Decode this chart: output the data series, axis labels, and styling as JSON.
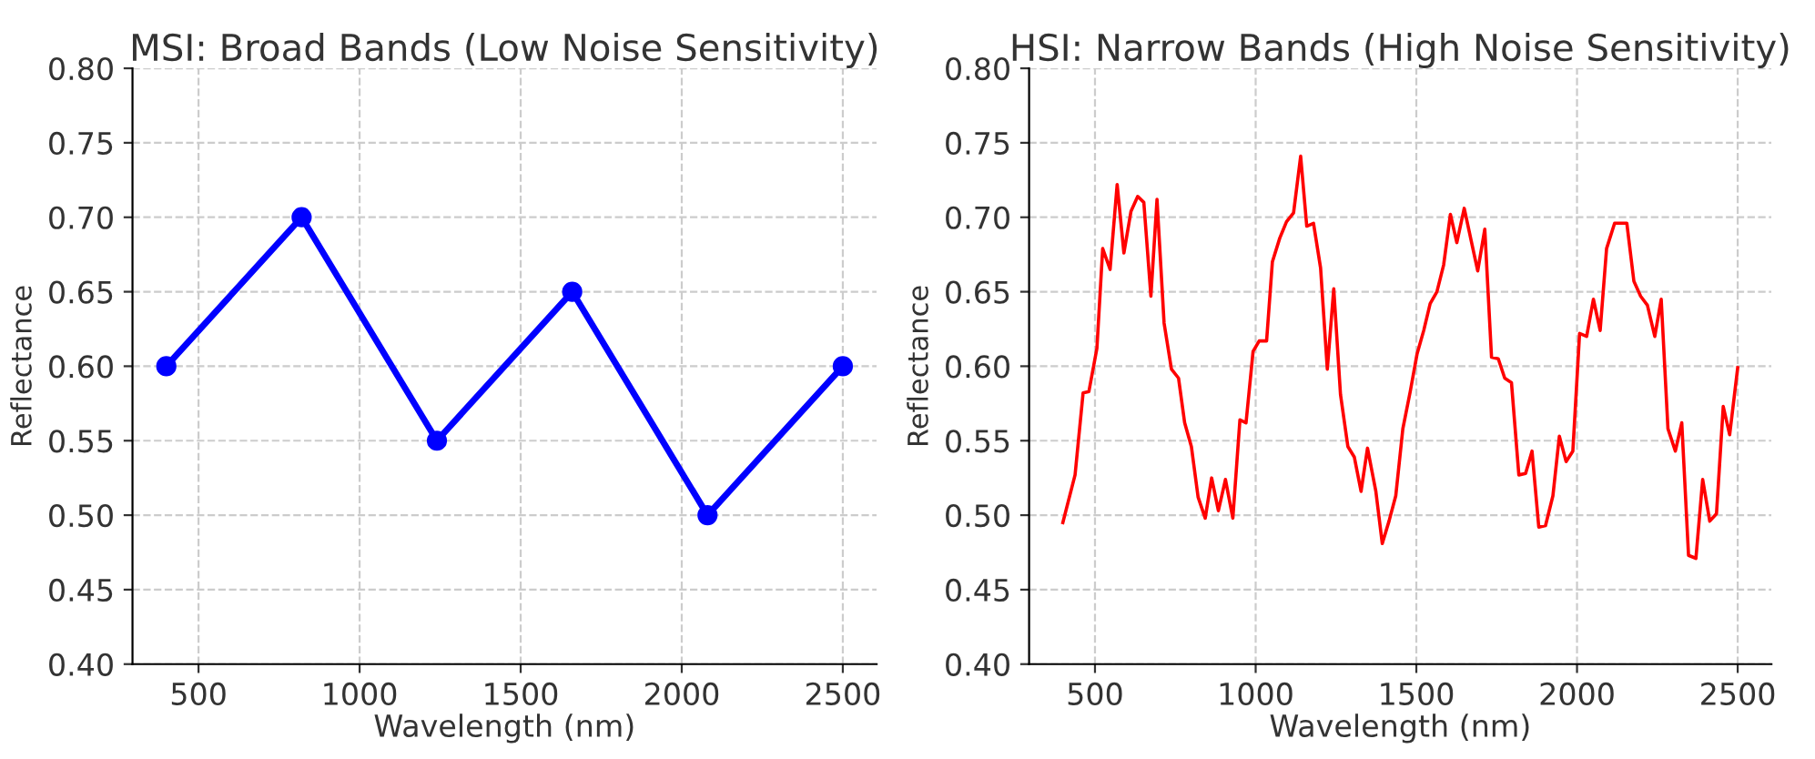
{
  "chart_data": [
    {
      "type": "line",
      "title": "MSI: Broad Bands (Low Noise Sensitivity)",
      "xlabel": "Wavelength (nm)",
      "ylabel": "Reflectance",
      "series": [
        {
          "color": "#0000ff",
          "x": [
            400,
            820,
            1240,
            1660,
            2080,
            2500
          ],
          "values": [
            0.6,
            0.7,
            0.55,
            0.65,
            0.5,
            0.6
          ]
        }
      ],
      "xlim": [
        295,
        2605
      ],
      "xticks": [
        500,
        1000,
        1500,
        2000,
        2500
      ],
      "ylim": [
        0.4,
        0.8
      ],
      "yticks": [
        {
          "value": 0.4,
          "label": "0.40"
        },
        {
          "value": 0.45,
          "label": "0.45"
        },
        {
          "value": 0.5,
          "label": "0.50"
        },
        {
          "value": 0.55,
          "label": "0.55"
        },
        {
          "value": 0.6,
          "label": "0.60"
        },
        {
          "value": 0.65,
          "label": "0.65"
        },
        {
          "value": 0.7,
          "label": "0.70"
        },
        {
          "value": 0.75,
          "label": "0.75"
        },
        {
          "value": 0.8,
          "label": "0.80"
        }
      ],
      "grid": true,
      "marker": "circle",
      "line_style": "solid"
    },
    {
      "type": "line",
      "title": "HSI: Narrow Bands (High Noise Sensitivity)",
      "xlabel": "Wavelength (nm)",
      "ylabel": "Reflectance",
      "series": [
        {
          "color": "#ff0000",
          "x": [
            400,
            438,
            463,
            481,
            506,
            524,
            547,
            569,
            590,
            612,
            633,
            652,
            674,
            693,
            715,
            738,
            760,
            779,
            800,
            821,
            843,
            863,
            884,
            906,
            929,
            951,
            970,
            992,
            1011,
            1034,
            1052,
            1075,
            1096,
            1118,
            1140,
            1159,
            1180,
            1202,
            1223,
            1243,
            1264,
            1287,
            1307,
            1328,
            1348,
            1374,
            1394,
            1415,
            1436,
            1458,
            1481,
            1502,
            1523,
            1543,
            1564,
            1585,
            1606,
            1626,
            1649,
            1670,
            1691,
            1713,
            1734,
            1755,
            1775,
            1796,
            1819,
            1840,
            1860,
            1881,
            1902,
            1925,
            1945,
            1966,
            1987,
            2008,
            2030,
            2051,
            2072,
            2092,
            2117,
            2155,
            2177,
            2198,
            2219,
            2242,
            2262,
            2283,
            2306,
            2326,
            2347,
            2370,
            2391,
            2413,
            2434,
            2455,
            2475,
            2500
          ],
          "values": [
            0.495,
            0.527,
            0.582,
            0.583,
            0.612,
            0.679,
            0.665,
            0.722,
            0.676,
            0.704,
            0.714,
            0.71,
            0.647,
            0.712,
            0.629,
            0.598,
            0.592,
            0.562,
            0.546,
            0.512,
            0.498,
            0.525,
            0.503,
            0.524,
            0.498,
            0.564,
            0.562,
            0.61,
            0.617,
            0.617,
            0.67,
            0.686,
            0.697,
            0.703,
            0.741,
            0.694,
            0.696,
            0.666,
            0.598,
            0.652,
            0.581,
            0.546,
            0.539,
            0.516,
            0.545,
            0.516,
            0.481,
            0.496,
            0.513,
            0.558,
            0.583,
            0.608,
            0.624,
            0.642,
            0.65,
            0.668,
            0.702,
            0.683,
            0.706,
            0.685,
            0.664,
            0.692,
            0.606,
            0.605,
            0.592,
            0.589,
            0.527,
            0.528,
            0.543,
            0.492,
            0.493,
            0.513,
            0.553,
            0.536,
            0.543,
            0.622,
            0.62,
            0.645,
            0.624,
            0.679,
            0.696,
            0.696,
            0.657,
            0.647,
            0.641,
            0.62,
            0.645,
            0.558,
            0.543,
            0.562,
            0.473,
            0.471,
            0.524,
            0.496,
            0.501,
            0.573,
            0.554,
            0.599
          ]
        }
      ],
      "xlim": [
        295,
        2605
      ],
      "xticks": [
        500,
        1000,
        1500,
        2000,
        2500
      ],
      "ylim": [
        0.4,
        0.8
      ],
      "yticks": [
        {
          "value": 0.4,
          "label": "0.40"
        },
        {
          "value": 0.45,
          "label": "0.45"
        },
        {
          "value": 0.5,
          "label": "0.50"
        },
        {
          "value": 0.55,
          "label": "0.55"
        },
        {
          "value": 0.6,
          "label": "0.60"
        },
        {
          "value": 0.65,
          "label": "0.65"
        },
        {
          "value": 0.7,
          "label": "0.70"
        },
        {
          "value": 0.75,
          "label": "0.75"
        },
        {
          "value": 0.8,
          "label": "0.80"
        }
      ],
      "grid": true,
      "line_style": "solid"
    }
  ]
}
